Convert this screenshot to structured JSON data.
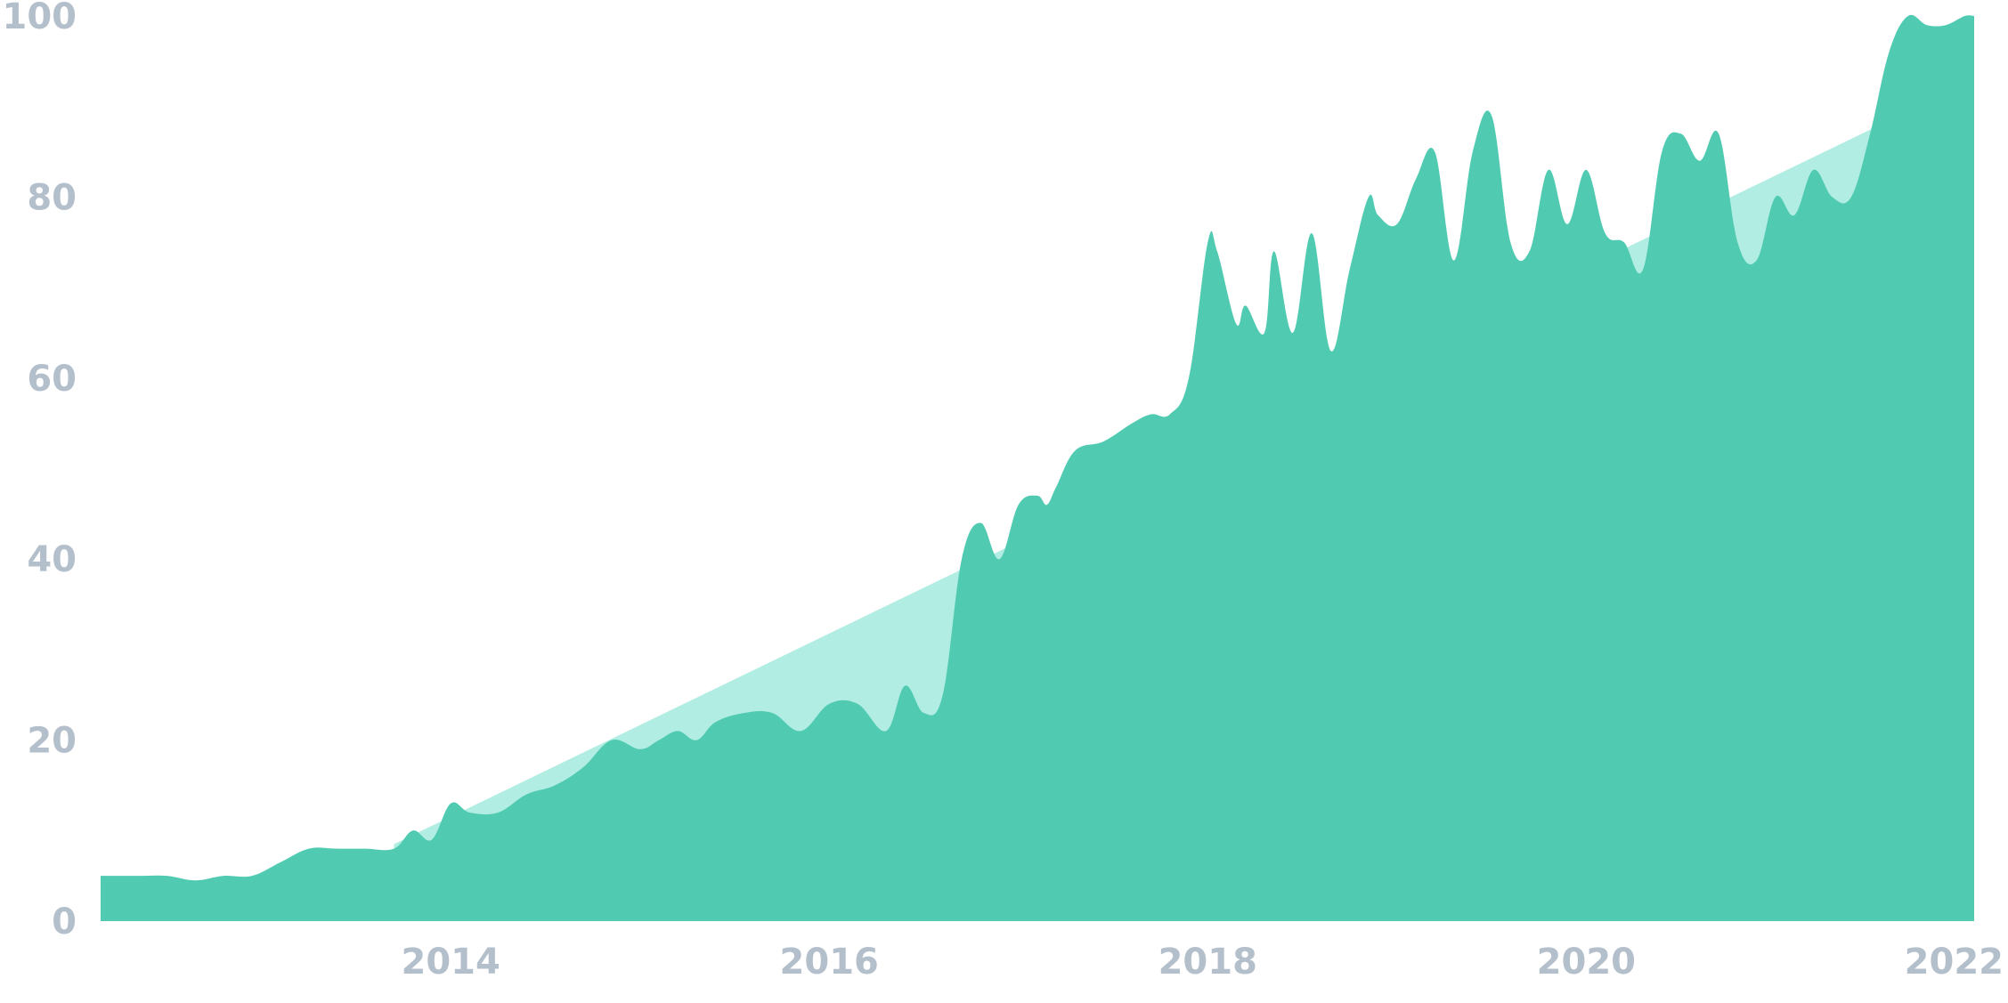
{
  "colors": {
    "series": "#50cbb2",
    "trend": "#b1ede2",
    "tick_text": "#b4bfcc",
    "background": "#ffffff"
  },
  "chart_data": {
    "type": "area",
    "title": "",
    "xlabel": "",
    "ylabel": "",
    "xlim": [
      2012.15,
      2022.05
    ],
    "ylim": [
      0,
      100
    ],
    "grid": false,
    "legend": "none",
    "y_ticks": [
      {
        "value": 0,
        "label": "0"
      },
      {
        "value": 20,
        "label": "20"
      },
      {
        "value": 40,
        "label": "40"
      },
      {
        "value": 60,
        "label": "60"
      },
      {
        "value": 80,
        "label": "80"
      },
      {
        "value": 100,
        "label": "100"
      }
    ],
    "x_ticks": [
      {
        "value": 2014,
        "label": "2014"
      },
      {
        "value": 2016,
        "label": "2016"
      },
      {
        "value": 2018,
        "label": "2018"
      },
      {
        "value": 2020,
        "label": "2020"
      },
      {
        "value": 2022,
        "label": "2022"
      }
    ],
    "series": [
      {
        "role": "trend",
        "x": [
          2013.7,
          2022.05
        ],
        "y": [
          8.5,
          93
        ]
      },
      {
        "role": "interest",
        "x": [
          2012.15,
          2012.35,
          2012.5,
          2012.65,
          2012.8,
          2012.95,
          2013.1,
          2013.25,
          2013.4,
          2013.55,
          2013.7,
          2013.8,
          2013.9,
          2014.0,
          2014.1,
          2014.25,
          2014.4,
          2014.55,
          2014.7,
          2014.85,
          2015.0,
          2015.1,
          2015.2,
          2015.3,
          2015.4,
          2015.55,
          2015.7,
          2015.85,
          2016.0,
          2016.15,
          2016.3,
          2016.4,
          2016.5,
          2016.6,
          2016.7,
          2016.8,
          2016.9,
          2017.0,
          2017.1,
          2017.15,
          2017.2,
          2017.3,
          2017.45,
          2017.6,
          2017.7,
          2017.8,
          2017.9,
          2018.0,
          2018.05,
          2018.15,
          2018.2,
          2018.3,
          2018.35,
          2018.45,
          2018.55,
          2018.65,
          2018.75,
          2018.85,
          2018.9,
          2019.0,
          2019.1,
          2019.2,
          2019.3,
          2019.4,
          2019.5,
          2019.6,
          2019.7,
          2019.8,
          2019.9,
          2020.0,
          2020.1,
          2020.2,
          2020.3,
          2020.4,
          2020.5,
          2020.6,
          2020.7,
          2020.8,
          2020.9,
          2021.0,
          2021.1,
          2021.2,
          2021.3,
          2021.4,
          2021.5,
          2021.6,
          2021.7,
          2021.8,
          2021.9,
          2022.0,
          2022.05
        ],
        "y": [
          5,
          5,
          5,
          4.5,
          5,
          5,
          6.5,
          8,
          8,
          8,
          8,
          10,
          9,
          13,
          12,
          12,
          14,
          15,
          17,
          20,
          19,
          20,
          21,
          20,
          22,
          23,
          23,
          21,
          24,
          24,
          21,
          26,
          23,
          25,
          40,
          44,
          40,
          46,
          47,
          46,
          48,
          52,
          53,
          55,
          56,
          56,
          60,
          75,
          74,
          66,
          68,
          65,
          74,
          65,
          76,
          63,
          72,
          80,
          78,
          77,
          82,
          85,
          73,
          85,
          89,
          75,
          74,
          83,
          77,
          83,
          76,
          75,
          72,
          85,
          87,
          84,
          87,
          75,
          73,
          80,
          78,
          83,
          80,
          80,
          87,
          96,
          100,
          99,
          99,
          100,
          100
        ]
      }
    ]
  }
}
